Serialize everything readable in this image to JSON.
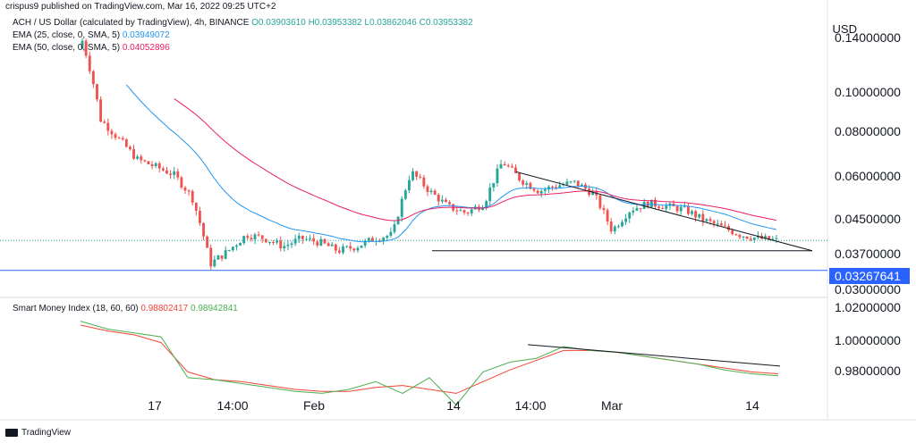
{
  "header": {
    "publisher": "crispus9 published on TradingView.com, Mar 16, 2022 09:25 UTC+2",
    "symbol_line": "ACH / US Dollar (calculated by TradingView), 4h, BINANCE",
    "ohlc": {
      "o": "O0.03903610",
      "h": "H0.03953382",
      "l": "L0.03862046",
      "c": "C0.03953382"
    },
    "ema25": {
      "label": "EMA (25, close, 0, SMA, 5)",
      "value": "0.03949072"
    },
    "ema50": {
      "label": "EMA (50, close, 0, SMA, 5)",
      "value": "0.04052896"
    },
    "smi": {
      "label": "Smart Money Index (18, 60, 60)",
      "v1": "0.98802417",
      "v2": "0.98942841"
    }
  },
  "currency": "USD",
  "price_labels": [
    "0.14000000",
    "0.10000000",
    "0.08000000",
    "0.06000000",
    "0.04500000",
    "0.03700000",
    "0.03000000"
  ],
  "current_tag": "0.03267641",
  "smi_labels": [
    "1.02000000",
    "1.00000000",
    "0.98000000"
  ],
  "x_labels": [
    "17",
    "14:00",
    "Feb",
    "14",
    "14:00",
    "Mar",
    "14"
  ],
  "footer": "TradingView",
  "colors": {
    "up": "#26a69a",
    "down": "#ef5350",
    "ema25": "#2196f3",
    "ema50": "#e91e63",
    "smi": "#4caf50",
    "smi_ma": "#f44336",
    "hline": "#2962ff"
  },
  "chart_data": [
    {
      "type": "candlestick",
      "x_ticks": [
        "17",
        "14:00",
        "Feb",
        "14",
        "14:00",
        "Mar",
        "14"
      ],
      "y_scale": "log",
      "y_ticks": [
        0.14,
        0.1,
        0.08,
        0.06,
        0.045,
        0.037,
        0.03
      ],
      "ylim": [
        0.028,
        0.16
      ],
      "series": [
        {
          "name": "EMA (25, close, 0, SMA, 5)",
          "last": 0.03949072
        },
        {
          "name": "EMA (50, close, 0, SMA, 5)",
          "last": 0.04052896
        }
      ],
      "close_path": [
        0.14,
        0.085,
        0.075,
        0.066,
        0.063,
        0.06,
        0.052,
        0.034,
        0.037,
        0.041,
        0.04,
        0.038,
        0.04,
        0.039,
        0.037,
        0.038,
        0.04,
        0.041,
        0.061,
        0.054,
        0.049,
        0.047,
        0.05,
        0.065,
        0.058,
        0.054,
        0.056,
        0.057,
        0.053,
        0.042,
        0.048,
        0.05,
        0.049,
        0.048,
        0.045,
        0.043,
        0.041,
        0.04,
        0.0395
      ],
      "horizontal_line": 0.03267641,
      "triangle": {
        "upper_start": 0.061,
        "support": 0.037
      }
    },
    {
      "type": "line",
      "name": "Smart Money Index (18, 60, 60)",
      "y_ticks": [
        1.02,
        1.0,
        0.98
      ],
      "ylim": [
        0.97,
        1.025
      ],
      "series": [
        {
          "values": [
            1.016,
            1.012,
            1.01,
            1.008,
            0.987,
            0.986,
            0.984,
            0.982,
            0.98,
            0.979,
            0.981,
            0.985,
            0.979,
            0.987,
            0.973,
            0.99,
            0.995,
            0.997,
            1.003,
            1.001,
            1.0,
            0.998,
            0.996,
            0.994,
            0.991,
            0.989,
            0.988
          ]
        },
        {
          "values": [
            1.014,
            1.011,
            1.009,
            1.005,
            0.99,
            0.986,
            0.985,
            0.983,
            0.981,
            0.98,
            0.98,
            0.982,
            0.983,
            0.981,
            0.979,
            0.985,
            0.991,
            0.996,
            1.001,
            1.001,
            1.0,
            0.998,
            0.996,
            0.994,
            0.992,
            0.99,
            0.989
          ]
        }
      ]
    }
  ]
}
